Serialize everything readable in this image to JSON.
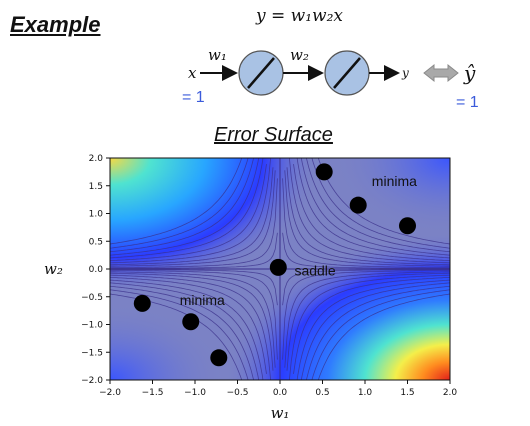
{
  "header": {
    "title": "Example",
    "formula": "y = w₁w₂x"
  },
  "network": {
    "input_label": "x",
    "input_value": "= 1",
    "w1_label": "w₁",
    "w2_label": "w₂",
    "output_label": "y",
    "target_label": "ŷ",
    "target_value": "= 1",
    "value_color": "#3b5bdb"
  },
  "surface": {
    "title": "Error Surface"
  },
  "chart_data": {
    "type": "scatter",
    "title": "",
    "xlabel": "w₁",
    "ylabel": "w₂",
    "xlim": [
      -2.0,
      2.0
    ],
    "ylim": [
      -2.0,
      2.0
    ],
    "xticks": [
      "−2.0",
      "−1.5",
      "−1.0",
      "−0.5",
      "0.0",
      "0.5",
      "1.0",
      "1.5",
      "2.0"
    ],
    "yticks": [
      "2.0",
      "1.5",
      "1.0",
      "0.5",
      "0.0",
      "−0.5",
      "−1.0",
      "−1.5",
      "−2.0"
    ],
    "points": [
      {
        "x": 0.52,
        "y": 1.75
      },
      {
        "x": 0.92,
        "y": 1.15
      },
      {
        "x": 1.5,
        "y": 0.78
      },
      {
        "x": -0.02,
        "y": 0.03
      },
      {
        "x": -1.62,
        "y": -0.62
      },
      {
        "x": -1.05,
        "y": -0.95
      },
      {
        "x": -0.72,
        "y": -1.6
      }
    ],
    "annotations": [
      {
        "text": "minima",
        "x": 1.08,
        "y": 1.5
      },
      {
        "text": "saddle",
        "x": 0.17,
        "y": -0.12
      },
      {
        "text": "minima",
        "x": -1.18,
        "y": -0.65
      }
    ],
    "contour_levels": [
      0.02,
      0.05,
      0.1,
      0.15,
      0.22,
      0.3,
      0.4,
      0.5,
      0.62,
      0.75,
      0.9
    ],
    "colors": {
      "base": "#7b82c5",
      "blue": "#2b3cff",
      "cyan": "#3cd6ff",
      "yellow": "#f6e84a",
      "red": "#e8281e",
      "contour": "#3a2f8a",
      "point": "#000000"
    }
  }
}
